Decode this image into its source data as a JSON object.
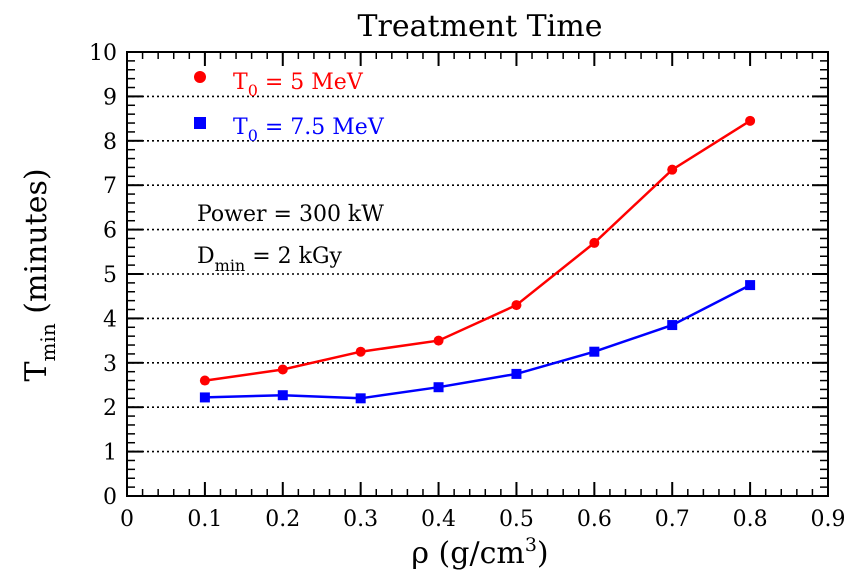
{
  "chart_data": {
    "type": "line",
    "title": "Treatment Time",
    "xlabel": {
      "base": "ρ (g/cm",
      "sup": "3",
      "tail": ")"
    },
    "ylabel": {
      "base": "T",
      "sub": "min",
      "tail": " (minutes)"
    },
    "xlim": [
      0,
      0.9
    ],
    "ylim": [
      0,
      10
    ],
    "x_ticks": [
      "0",
      "0.1",
      "0.2",
      "0.3",
      "0.4",
      "0.5",
      "0.6",
      "0.7",
      "0.8",
      "0.9"
    ],
    "y_ticks": [
      "0",
      "1",
      "2",
      "3",
      "4",
      "5",
      "6",
      "7",
      "8",
      "9",
      "10"
    ],
    "grid": "horizontal dotted",
    "legend_position": "top-left",
    "x": [
      0.1,
      0.2,
      0.3,
      0.4,
      0.5,
      0.6,
      0.7,
      0.8
    ],
    "series": [
      {
        "legend": {
          "base": "T",
          "sub": "0",
          "tail": " = 5 MeV"
        },
        "marker": "circle",
        "color": "#ff0000",
        "values": [
          2.6,
          2.85,
          3.25,
          3.5,
          4.3,
          5.7,
          7.35,
          8.45
        ]
      },
      {
        "legend": {
          "base": "T",
          "sub": "0",
          "tail": " = 7.5 MeV"
        },
        "marker": "square",
        "color": "#0000ff",
        "values": [
          2.22,
          2.27,
          2.2,
          2.45,
          2.75,
          3.25,
          3.85,
          4.75
        ]
      }
    ],
    "annotations": {
      "power": "Power = 300 kW",
      "dmin": {
        "base": "D",
        "sub": "min",
        "tail": " = 2 kGy"
      }
    }
  }
}
